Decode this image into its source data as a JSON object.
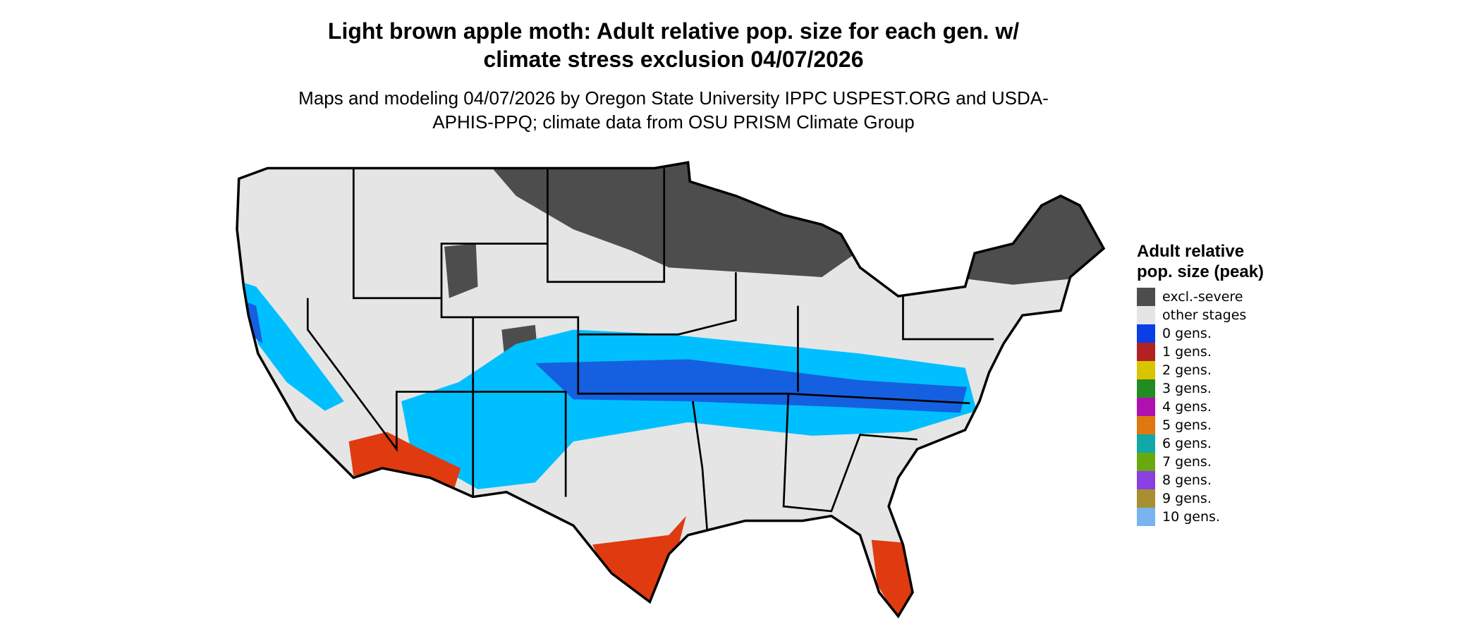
{
  "title": "Light brown apple moth: Adult relative pop. size for each gen. w/ climate stress exclusion 04/07/2026",
  "subtitle": "Maps and modeling 04/07/2026 by Oregon State University IPPC USPEST.ORG and USDA-APHIS-PPQ; climate data from OSU PRISM Climate Group",
  "legend": {
    "title": "Adult relative pop. size (peak)",
    "items": [
      {
        "label": "excl.-severe",
        "color": "#4d4d4d"
      },
      {
        "label": "other stages",
        "color": "#e5e5e5"
      },
      {
        "label": "0 gens.",
        "color": "#0a3ee6"
      },
      {
        "label": "1 gens.",
        "color": "#b22222"
      },
      {
        "label": "2 gens.",
        "color": "#d9c400"
      },
      {
        "label": "3 gens.",
        "color": "#228b22"
      },
      {
        "label": "4 gens.",
        "color": "#b010b0"
      },
      {
        "label": "5 gens.",
        "color": "#e07810"
      },
      {
        "label": "6 gens.",
        "color": "#10a8a8"
      },
      {
        "label": "7 gens.",
        "color": "#6aa810"
      },
      {
        "label": "8 gens.",
        "color": "#8a40e0"
      },
      {
        "label": "9 gens.",
        "color": "#a89030"
      },
      {
        "label": "10 gens.",
        "color": "#78b4f0"
      }
    ]
  }
}
